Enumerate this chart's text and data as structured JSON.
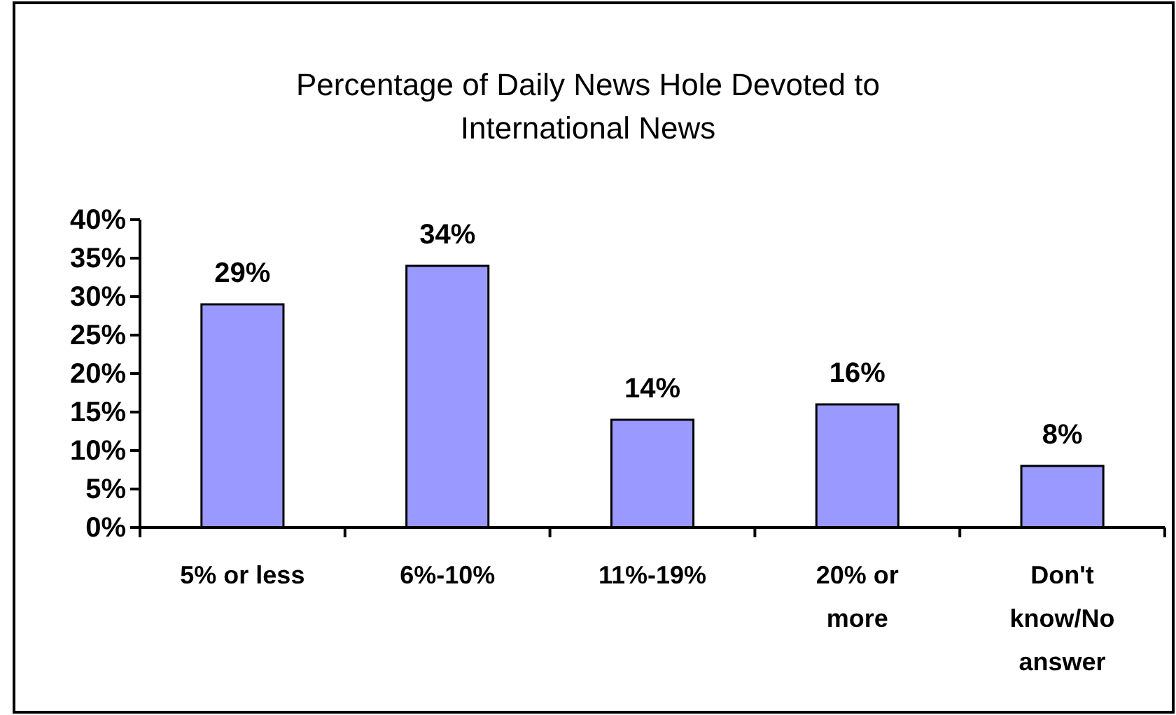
{
  "chart_data": {
    "type": "bar",
    "title": "Percentage of Daily News Hole Devoted to International News",
    "categories": [
      "5% or less",
      "6%-10%",
      "11%-19%",
      "20% or more",
      "Don't know/No answer"
    ],
    "series": [
      {
        "color": "#9999ff",
        "values": [
          29,
          34,
          14,
          16,
          8
        ]
      }
    ],
    "ylim": [
      0,
      40
    ],
    "yticks": [
      {
        "value": 0,
        "label": "0%"
      },
      {
        "value": 5,
        "label": "5%"
      },
      {
        "value": 10,
        "label": "10%"
      },
      {
        "value": 15,
        "label": "15%"
      },
      {
        "value": 20,
        "label": "20%"
      },
      {
        "value": 25,
        "label": "25%"
      },
      {
        "value": 30,
        "label": "30%"
      },
      {
        "value": 35,
        "label": "35%"
      },
      {
        "value": 40,
        "label": "40%"
      }
    ],
    "value_labels": [
      "29%",
      "34%",
      "14%",
      "16%",
      "8%"
    ],
    "grid": false
  }
}
